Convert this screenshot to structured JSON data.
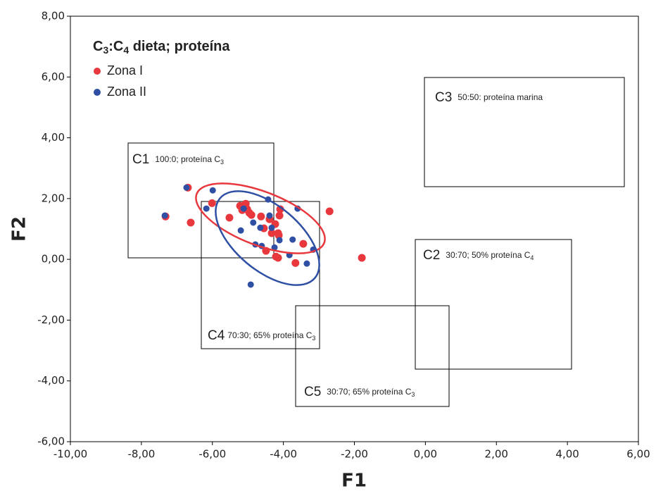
{
  "chart_data": {
    "type": "scatter",
    "title": {
      "parts": [
        "C",
        "3",
        ":C",
        "4",
        " dieta; proteína"
      ]
    },
    "x_label": "F1",
    "y_label": "F2",
    "xlim": [
      -10,
      6
    ],
    "ylim": [
      -6,
      8
    ],
    "xticks": [
      {
        "value": -10,
        "label": "-10,00"
      },
      {
        "value": -8,
        "label": "-8,00"
      },
      {
        "value": -6,
        "label": "-6,00"
      },
      {
        "value": -4,
        "label": "-4,00"
      },
      {
        "value": -2,
        "label": "-2,00"
      },
      {
        "value": 0,
        "label": "0,00"
      },
      {
        "value": 2,
        "label": "2,00"
      },
      {
        "value": 4,
        "label": "4,00"
      },
      {
        "value": 6,
        "label": "6,00"
      }
    ],
    "yticks": [
      {
        "value": -6,
        "label": "-6,00"
      },
      {
        "value": -4,
        "label": "-4,00"
      },
      {
        "value": -2,
        "label": "-2,00"
      },
      {
        "value": 0,
        "label": "0,00"
      },
      {
        "value": 2,
        "label": "2,00"
      },
      {
        "value": 4,
        "label": "4,00"
      },
      {
        "value": 6,
        "label": "6,00"
      },
      {
        "value": 8,
        "label": "8,00"
      }
    ],
    "series": [
      {
        "name": "Zona I",
        "color": "#e8383d",
        "x": [
          -7.32,
          -6.69,
          -6.61,
          -6.01,
          -5.52,
          -5.22,
          -5.16,
          -5.06,
          -5.02,
          -4.96,
          -4.9,
          -4.63,
          -4.55,
          -4.49,
          -4.39,
          -4.33,
          -4.23,
          -4.15,
          -4.13,
          -4.11,
          -4.09,
          -4.15,
          -4.21,
          -3.44,
          -3.66,
          -2.7,
          -1.79
        ],
        "y": [
          1.41,
          2.36,
          1.21,
          1.85,
          1.37,
          1.76,
          1.62,
          1.83,
          1.65,
          1.53,
          1.46,
          1.41,
          1.02,
          0.28,
          1.32,
          0.86,
          1.16,
          0.86,
          0.79,
          1.44,
          1.65,
          0.05,
          0.09,
          0.51,
          -0.12,
          1.58,
          0.05
        ]
      },
      {
        "name": "Zona II",
        "color": "#2e4fa3",
        "x": [
          -7.34,
          -6.73,
          -6.17,
          -5.99,
          -5.2,
          -5.12,
          -4.85,
          -4.79,
          -4.61,
          -4.65,
          -4.43,
          -4.39,
          -4.33,
          -4.25,
          -4.11,
          -3.74,
          -3.6,
          -3.83,
          -3.34,
          -3.16,
          -4.92
        ],
        "y": [
          1.44,
          2.36,
          1.67,
          2.27,
          0.95,
          1.67,
          1.21,
          0.49,
          0.44,
          1.04,
          1.97,
          1.44,
          1.04,
          0.39,
          0.63,
          0.65,
          1.67,
          0.14,
          -0.14,
          0.32,
          -0.83
        ]
      }
    ],
    "annotations": [
      {
        "label": "C1",
        "text": "100:0; proteína C",
        "sub": "3"
      },
      {
        "label": "C3",
        "text": "50:50: proteína marina"
      },
      {
        "label": "C2",
        "text": "30:70; 50% proteína C",
        "sub": "4"
      },
      {
        "label": "C4",
        "text": "70:30; 65% proteína C",
        "sub": "3"
      },
      {
        "label": "C5",
        "text": "30:70; 65% proteína C",
        "sub": "3"
      }
    ]
  }
}
